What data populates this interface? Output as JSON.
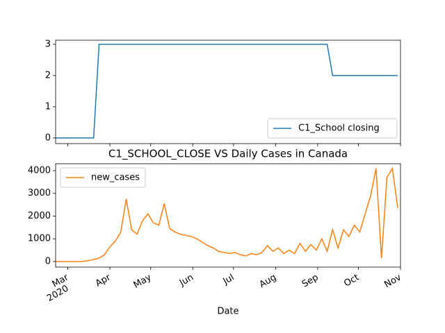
{
  "chart_data": [
    {
      "type": "line",
      "series": [
        {
          "name": "C1_School closing",
          "color": "#1f77b4",
          "values": [
            0,
            0,
            0,
            0,
            0,
            0,
            0,
            0,
            3,
            3,
            3,
            3,
            3,
            3,
            3,
            3,
            3,
            3,
            3,
            3,
            3,
            3,
            3,
            3,
            3,
            3,
            3,
            3,
            3,
            3,
            3,
            3,
            3,
            3,
            3,
            3,
            3,
            3,
            3,
            3,
            3,
            3,
            3,
            3,
            3,
            3,
            3,
            3,
            3,
            3,
            3,
            2,
            2,
            2,
            2,
            2,
            2,
            2,
            2,
            2,
            2,
            2,
            2,
            2
          ]
        }
      ],
      "xlim": [
        0,
        63.5
      ],
      "ylim": [
        -0.18,
        3.13
      ],
      "yticks": [
        0,
        1,
        2,
        3
      ],
      "legend": "lower right"
    },
    {
      "type": "line",
      "title": "C1_SCHOOL_CLOSE VS Daily Cases in Canada",
      "xlabel": "Date",
      "x_year_label": "2020",
      "series": [
        {
          "name": "new_cases",
          "color": "#ff7f0e",
          "values": [
            0,
            0,
            0,
            0,
            0,
            10,
            40,
            90,
            150,
            300,
            650,
            900,
            1300,
            2750,
            1400,
            1200,
            1800,
            2100,
            1700,
            1600,
            2550,
            1450,
            1300,
            1200,
            1150,
            1100,
            1000,
            850,
            700,
            600,
            450,
            400,
            350,
            400,
            300,
            250,
            350,
            300,
            400,
            700,
            450,
            600,
            350,
            500,
            350,
            800,
            450,
            750,
            500,
            1000,
            450,
            1400,
            600,
            1400,
            1100,
            1600,
            1300,
            2100,
            2900,
            4100,
            150,
            3700,
            4100,
            2350
          ]
        }
      ],
      "xlim": [
        0,
        63.5
      ],
      "ylim": [
        -245,
        4305
      ],
      "yticks": [
        0,
        1000,
        2000,
        3000,
        4000
      ],
      "xticks": [
        {
          "value": 2.25,
          "label": "Mar"
        },
        {
          "value": 10,
          "label": "Apr"
        },
        {
          "value": 17.5,
          "label": "May"
        },
        {
          "value": 25.25,
          "label": "Jun"
        },
        {
          "value": 32.75,
          "label": "Jul"
        },
        {
          "value": 40.5,
          "label": "Aug"
        },
        {
          "value": 48.25,
          "label": "Sep"
        },
        {
          "value": 55.75,
          "label": "Oct"
        },
        {
          "value": 63.5,
          "label": "Nov"
        }
      ],
      "legend": "upper left"
    }
  ]
}
